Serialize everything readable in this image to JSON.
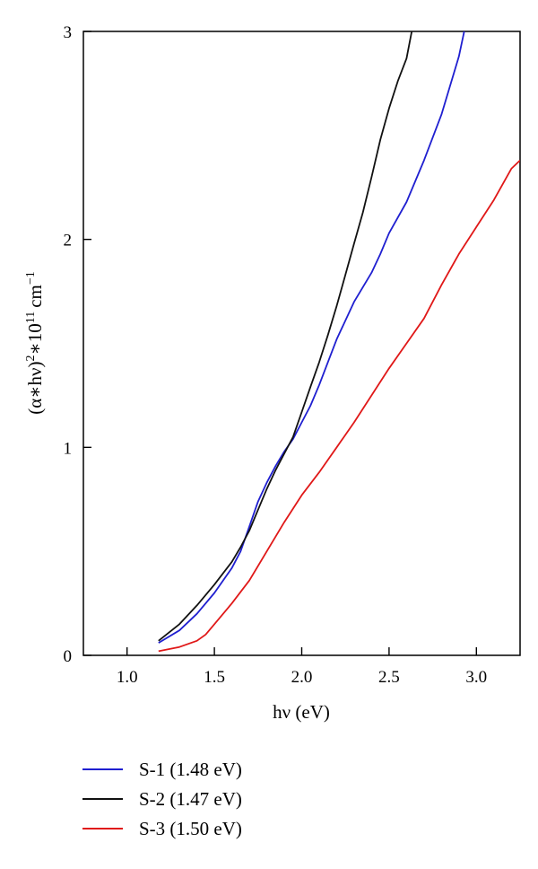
{
  "chart_data": {
    "type": "line",
    "xlabel": "hν (eV)",
    "ylabel_base": "(α∗hν)",
    "ylabel_sup1": "2",
    "ylabel_mid": "∗10",
    "ylabel_sup2": "11",
    "ylabel_unit": "cm",
    "ylabel_sup3": "−1",
    "xlim": [
      0.75,
      3.25
    ],
    "ylim": [
      0,
      3
    ],
    "xticks": [
      1.0,
      1.5,
      2.0,
      2.5,
      3.0
    ],
    "xtick_labels": [
      "1.0",
      "1.5",
      "2.0",
      "2.5",
      "3.0"
    ],
    "yticks": [
      0,
      1,
      2,
      3
    ],
    "ytick_labels": [
      "0",
      "1",
      "2",
      "3"
    ],
    "grid": false,
    "legend_position": "bottom-left, below plot",
    "series": [
      {
        "name": "S-1 (1.48 eV)",
        "color": "#1f1fd0",
        "points": [
          [
            1.18,
            0.06
          ],
          [
            1.3,
            0.12
          ],
          [
            1.4,
            0.2
          ],
          [
            1.5,
            0.3
          ],
          [
            1.6,
            0.42
          ],
          [
            1.65,
            0.5
          ],
          [
            1.7,
            0.62
          ],
          [
            1.75,
            0.74
          ],
          [
            1.8,
            0.83
          ],
          [
            1.85,
            0.91
          ],
          [
            1.9,
            0.98
          ],
          [
            1.95,
            1.04
          ],
          [
            2.0,
            1.12
          ],
          [
            2.05,
            1.2
          ],
          [
            2.1,
            1.3
          ],
          [
            2.15,
            1.41
          ],
          [
            2.2,
            1.52
          ],
          [
            2.3,
            1.7
          ],
          [
            2.4,
            1.84
          ],
          [
            2.45,
            1.93
          ],
          [
            2.5,
            2.03
          ],
          [
            2.6,
            2.18
          ],
          [
            2.7,
            2.38
          ],
          [
            2.8,
            2.6
          ],
          [
            2.9,
            2.88
          ],
          [
            2.93,
            3.0
          ]
        ]
      },
      {
        "name": "S-2 (1.47 eV)",
        "color": "#111111",
        "points": [
          [
            1.18,
            0.07
          ],
          [
            1.3,
            0.15
          ],
          [
            1.4,
            0.24
          ],
          [
            1.5,
            0.34
          ],
          [
            1.6,
            0.45
          ],
          [
            1.65,
            0.52
          ],
          [
            1.7,
            0.6
          ],
          [
            1.75,
            0.7
          ],
          [
            1.8,
            0.8
          ],
          [
            1.85,
            0.89
          ],
          [
            1.9,
            0.97
          ],
          [
            1.95,
            1.05
          ],
          [
            2.0,
            1.17
          ],
          [
            2.05,
            1.29
          ],
          [
            2.1,
            1.41
          ],
          [
            2.15,
            1.54
          ],
          [
            2.2,
            1.68
          ],
          [
            2.25,
            1.83
          ],
          [
            2.3,
            1.98
          ],
          [
            2.35,
            2.13
          ],
          [
            2.4,
            2.3
          ],
          [
            2.45,
            2.48
          ],
          [
            2.5,
            2.63
          ],
          [
            2.55,
            2.76
          ],
          [
            2.6,
            2.87
          ],
          [
            2.63,
            3.0
          ]
        ]
      },
      {
        "name": "S-3 (1.50 eV)",
        "color": "#e01818",
        "points": [
          [
            1.18,
            0.02
          ],
          [
            1.3,
            0.04
          ],
          [
            1.4,
            0.07
          ],
          [
            1.45,
            0.1
          ],
          [
            1.5,
            0.15
          ],
          [
            1.6,
            0.25
          ],
          [
            1.7,
            0.36
          ],
          [
            1.8,
            0.5
          ],
          [
            1.9,
            0.64
          ],
          [
            2.0,
            0.77
          ],
          [
            2.1,
            0.88
          ],
          [
            2.2,
            1.0
          ],
          [
            2.3,
            1.12
          ],
          [
            2.4,
            1.25
          ],
          [
            2.5,
            1.38
          ],
          [
            2.6,
            1.5
          ],
          [
            2.7,
            1.62
          ],
          [
            2.8,
            1.78
          ],
          [
            2.9,
            1.93
          ],
          [
            3.0,
            2.06
          ],
          [
            3.1,
            2.19
          ],
          [
            3.2,
            2.34
          ],
          [
            3.25,
            2.38
          ]
        ]
      }
    ]
  }
}
